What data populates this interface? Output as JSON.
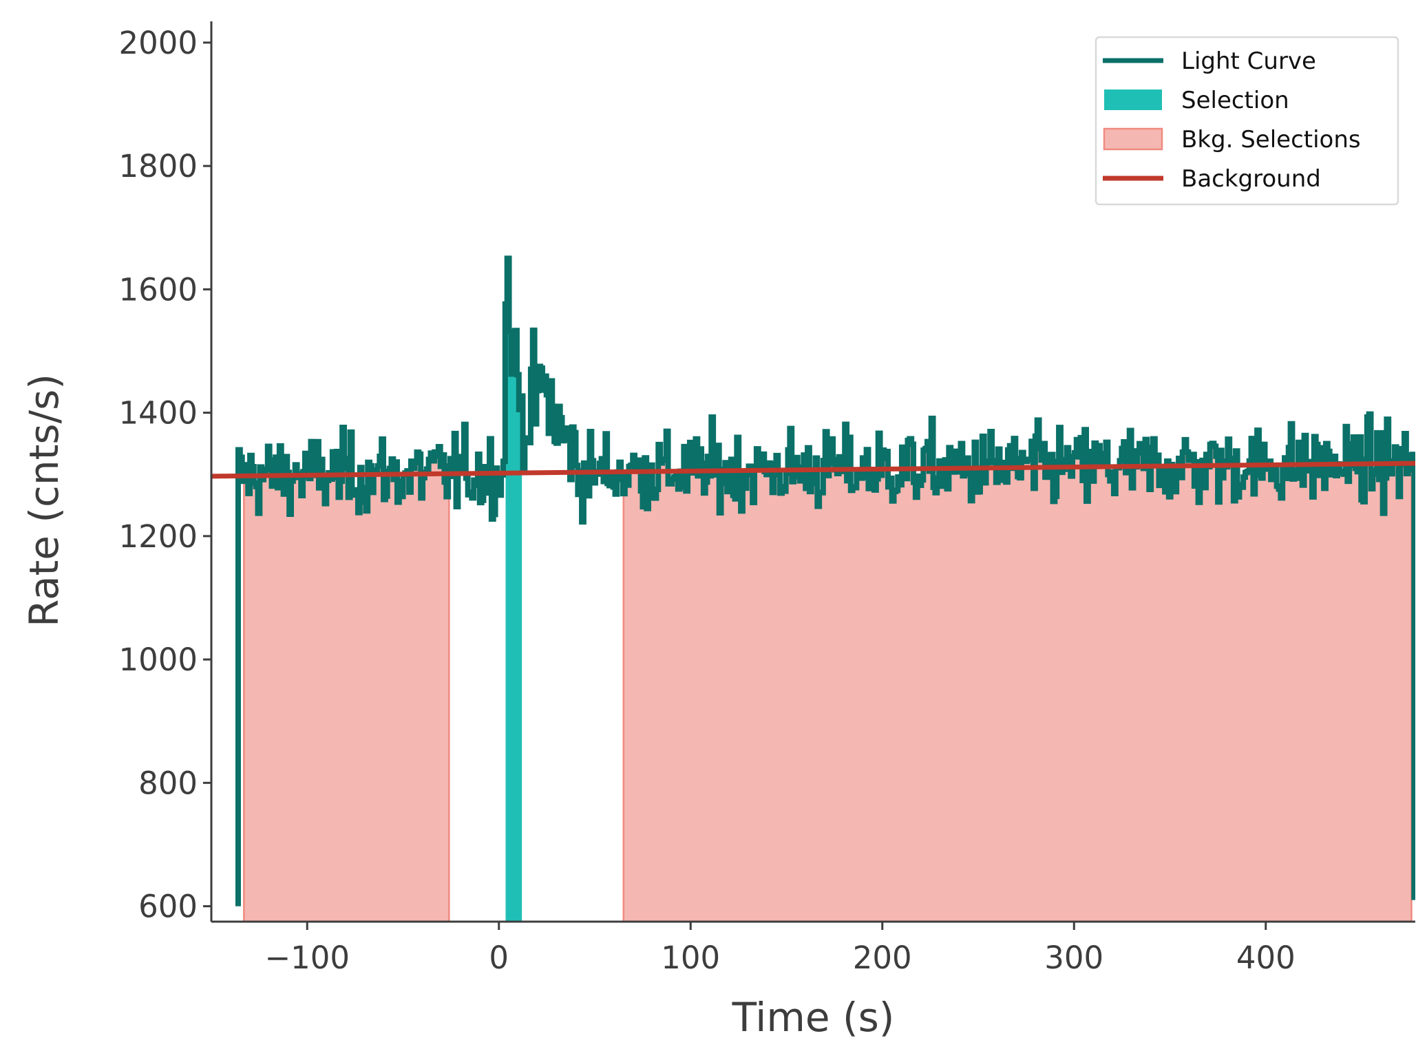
{
  "chart_data": {
    "type": "line",
    "title": "",
    "xlabel": "Time (s)",
    "ylabel": "Rate (cnts/s)",
    "xlim": [
      -150,
      478
    ],
    "ylim": [
      575,
      2030
    ],
    "xticks": [
      -100,
      0,
      100,
      200,
      300,
      400
    ],
    "xtick_labels": [
      "−100",
      "0",
      "100",
      "200",
      "300",
      "400"
    ],
    "yticks": [
      600,
      800,
      1000,
      1200,
      1400,
      1600,
      1800,
      2000
    ],
    "ytick_labels": [
      "600",
      "800",
      "1000",
      "1200",
      "1400",
      "1600",
      "1800",
      "2000"
    ],
    "grid": false,
    "legend_position": "top-right",
    "colors": {
      "light_curve": "#0a7068",
      "selection": "#20bfb5",
      "bkg_fill": "#f5b7b1",
      "bkg_edge": "#ef8a80",
      "background": "#c0392b",
      "axis": "#3d3d3d"
    },
    "series": [
      {
        "name": "Light Curve",
        "kind": "step",
        "start": -136,
        "step": 1.024,
        "baseline_start": 600,
        "baseline_end": 610,
        "background_start": 1298,
        "background_end": 1318,
        "noise_amplitude": 35,
        "peak": [
          {
            "t": 3,
            "y": 1550
          },
          {
            "t": 3.8,
            "y": 1690
          },
          {
            "t": 5,
            "y": 1560
          },
          {
            "t": 7,
            "y": 1500
          },
          {
            "t": 10,
            "y": 1430
          },
          {
            "t": 13,
            "y": 1390
          },
          {
            "t": 18,
            "y": 1420
          },
          {
            "t": 22,
            "y": 1440
          },
          {
            "t": 27,
            "y": 1410
          },
          {
            "t": 32,
            "y": 1360
          },
          {
            "t": 40,
            "y": 1335
          }
        ]
      },
      {
        "name": "Background",
        "kind": "line",
        "x": [
          -150,
          478
        ],
        "y": [
          1297,
          1318
        ]
      }
    ],
    "selection": {
      "name": "Selection",
      "x_range": [
        3.5,
        12
      ]
    },
    "bkg_selections": {
      "name": "Bkg. Selections",
      "ranges": [
        [
          -133,
          -26
        ],
        [
          65,
          476
        ]
      ]
    },
    "legend": [
      {
        "label": "Light Curve",
        "kind": "line",
        "color_key": "light_curve"
      },
      {
        "label": "Selection",
        "kind": "patch",
        "color_key": "selection"
      },
      {
        "label": "Bkg. Selections",
        "kind": "patch-edge",
        "color_key": "bkg_fill"
      },
      {
        "label": "Background",
        "kind": "line",
        "color_key": "background"
      }
    ]
  }
}
